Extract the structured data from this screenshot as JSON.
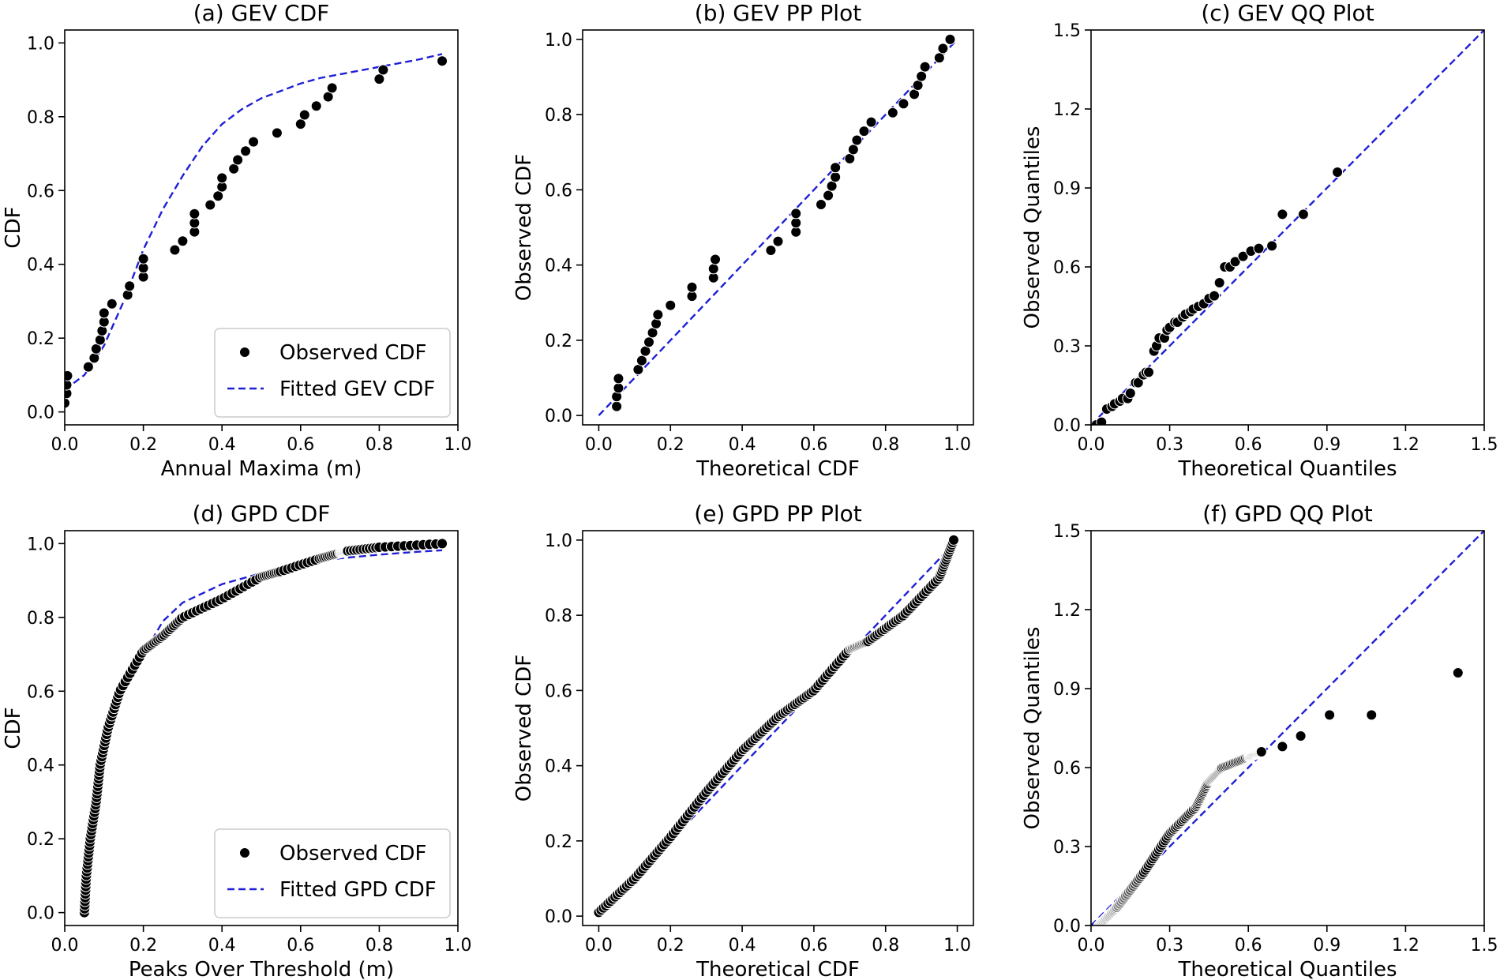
{
  "colors": {
    "points": "#000000",
    "point_edge": "#ffffff",
    "fitted_line": "#1f1fd6",
    "axes": "#000000",
    "legend_frame": "#cccccc"
  },
  "chart_data": [
    {
      "id": "a",
      "type": "scatter",
      "title": "(a) GEV CDF",
      "xlabel": "Annual Maxima (m)",
      "ylabel": "CDF",
      "xlim": [
        0.0,
        1.0
      ],
      "ylim": [
        -0.035,
        1.035
      ],
      "xticks": [
        0.0,
        0.2,
        0.4,
        0.6,
        0.8,
        1.0
      ],
      "xtick_labels": [
        "0.0",
        "0.2",
        "0.4",
        "0.6",
        "0.8",
        "1.0"
      ],
      "yticks": [
        0.0,
        0.2,
        0.4,
        0.6,
        0.8,
        1.0
      ],
      "ytick_labels": [
        "0.0",
        "0.2",
        "0.4",
        "0.6",
        "0.8",
        "1.0"
      ],
      "legend": {
        "position": "lower-right",
        "entries": [
          "Observed CDF",
          "Fitted GEV CDF"
        ]
      },
      "series": [
        {
          "name": "Observed CDF",
          "kind": "points",
          "x": [
            0.0,
            0.005,
            0.005,
            0.007,
            0.06,
            0.075,
            0.08,
            0.09,
            0.095,
            0.1,
            0.1,
            0.12,
            0.16,
            0.165,
            0.2,
            0.2,
            0.2,
            0.28,
            0.3,
            0.33,
            0.33,
            0.33,
            0.37,
            0.39,
            0.4,
            0.4,
            0.43,
            0.44,
            0.46,
            0.48,
            0.54,
            0.6,
            0.61,
            0.64,
            0.67,
            0.68,
            0.8,
            0.81,
            0.96
          ],
          "y": [
            0.024,
            0.05,
            0.073,
            0.098,
            0.122,
            0.146,
            0.171,
            0.195,
            0.22,
            0.244,
            0.268,
            0.293,
            0.317,
            0.341,
            0.366,
            0.39,
            0.415,
            0.439,
            0.463,
            0.488,
            0.512,
            0.537,
            0.561,
            0.585,
            0.61,
            0.634,
            0.659,
            0.683,
            0.707,
            0.732,
            0.756,
            0.78,
            0.805,
            0.829,
            0.854,
            0.878,
            0.902,
            0.927,
            0.951
          ]
        },
        {
          "name": "Fitted GEV CDF",
          "kind": "dashed-line",
          "x": [
            0.0,
            0.05,
            0.1,
            0.15,
            0.2,
            0.25,
            0.3,
            0.35,
            0.4,
            0.45,
            0.5,
            0.55,
            0.6,
            0.65,
            0.7,
            0.75,
            0.8,
            0.85,
            0.9,
            0.96
          ],
          "y": [
            0.06,
            0.1,
            0.18,
            0.3,
            0.44,
            0.55,
            0.64,
            0.72,
            0.78,
            0.82,
            0.85,
            0.87,
            0.89,
            0.905,
            0.915,
            0.925,
            0.935,
            0.945,
            0.955,
            0.97
          ]
        }
      ]
    },
    {
      "id": "b",
      "type": "scatter",
      "title": "(b) GEV PP Plot",
      "xlabel": "Theoretical CDF",
      "ylabel": "Observed CDF",
      "xlim": [
        -0.045,
        1.045
      ],
      "ylim": [
        -0.025,
        1.025
      ],
      "xticks": [
        0.0,
        0.2,
        0.4,
        0.6,
        0.8,
        1.0
      ],
      "xtick_labels": [
        "0.0",
        "0.2",
        "0.4",
        "0.6",
        "0.8",
        "1.0"
      ],
      "yticks": [
        0.0,
        0.2,
        0.4,
        0.6,
        0.8,
        1.0
      ],
      "ytick_labels": [
        "0.0",
        "0.2",
        "0.4",
        "0.6",
        "0.8",
        "1.0"
      ],
      "legend": null,
      "series": [
        {
          "name": "Observed",
          "kind": "points",
          "x": [
            0.05,
            0.05,
            0.055,
            0.055,
            0.11,
            0.12,
            0.13,
            0.14,
            0.15,
            0.16,
            0.165,
            0.2,
            0.26,
            0.26,
            0.32,
            0.32,
            0.325,
            0.48,
            0.5,
            0.55,
            0.55,
            0.55,
            0.62,
            0.64,
            0.65,
            0.66,
            0.66,
            0.7,
            0.71,
            0.72,
            0.74,
            0.76,
            0.82,
            0.85,
            0.88,
            0.89,
            0.9,
            0.91,
            0.95,
            0.96,
            0.98
          ],
          "y": [
            0.024,
            0.05,
            0.073,
            0.098,
            0.122,
            0.146,
            0.171,
            0.195,
            0.22,
            0.244,
            0.268,
            0.293,
            0.317,
            0.341,
            0.366,
            0.39,
            0.415,
            0.439,
            0.463,
            0.488,
            0.512,
            0.537,
            0.561,
            0.585,
            0.61,
            0.634,
            0.659,
            0.683,
            0.707,
            0.732,
            0.756,
            0.78,
            0.805,
            0.829,
            0.854,
            0.878,
            0.902,
            0.927,
            0.951,
            0.976,
            1.0
          ]
        },
        {
          "name": "Reference",
          "kind": "dashed-line",
          "x": [
            0.0,
            1.0
          ],
          "y": [
            0.0,
            1.0
          ]
        }
      ]
    },
    {
      "id": "c",
      "type": "scatter",
      "title": "(c) GEV QQ Plot",
      "xlabel": "Theoretical Quantiles",
      "ylabel": "Observed Quantiles",
      "xlim": [
        0.0,
        1.5
      ],
      "ylim": [
        0.0,
        1.5
      ],
      "xticks": [
        0.0,
        0.3,
        0.6,
        0.9,
        1.2,
        1.5
      ],
      "xtick_labels": [
        "0.0",
        "0.3",
        "0.6",
        "0.9",
        "1.2",
        "1.5"
      ],
      "yticks": [
        0.0,
        0.3,
        0.6,
        0.9,
        1.2,
        1.5
      ],
      "ytick_labels": [
        "0.0",
        "0.3",
        "0.6",
        "0.9",
        "1.2",
        "1.5"
      ],
      "legend": null,
      "series": [
        {
          "name": "Observed",
          "kind": "points",
          "x": [
            0.02,
            0.04,
            0.06,
            0.08,
            0.09,
            0.11,
            0.12,
            0.14,
            0.15,
            0.17,
            0.18,
            0.2,
            0.21,
            0.22,
            0.24,
            0.25,
            0.26,
            0.28,
            0.29,
            0.3,
            0.32,
            0.33,
            0.35,
            0.36,
            0.38,
            0.39,
            0.41,
            0.43,
            0.45,
            0.47,
            0.49,
            0.51,
            0.53,
            0.55,
            0.58,
            0.61,
            0.64,
            0.69,
            0.73,
            0.81,
            0.94
          ],
          "y": [
            0.0,
            0.01,
            0.06,
            0.07,
            0.08,
            0.09,
            0.1,
            0.1,
            0.12,
            0.16,
            0.16,
            0.19,
            0.2,
            0.2,
            0.28,
            0.3,
            0.33,
            0.33,
            0.36,
            0.37,
            0.39,
            0.39,
            0.41,
            0.42,
            0.43,
            0.44,
            0.45,
            0.46,
            0.48,
            0.49,
            0.54,
            0.6,
            0.6,
            0.62,
            0.64,
            0.66,
            0.67,
            0.68,
            0.8,
            0.8,
            0.96
          ]
        },
        {
          "name": "Reference",
          "kind": "dashed-line",
          "x": [
            0.0,
            1.5
          ],
          "y": [
            0.0,
            1.5
          ]
        }
      ]
    },
    {
      "id": "d",
      "type": "scatter",
      "title": "(d) GPD CDF",
      "xlabel": "Peaks Over Threshold (m)",
      "ylabel": "CDF",
      "xlim": [
        0.0,
        1.0
      ],
      "ylim": [
        -0.035,
        1.035
      ],
      "xticks": [
        0.0,
        0.2,
        0.4,
        0.6,
        0.8,
        1.0
      ],
      "xtick_labels": [
        "0.0",
        "0.2",
        "0.4",
        "0.6",
        "0.8",
        "1.0"
      ],
      "yticks": [
        0.0,
        0.2,
        0.4,
        0.6,
        0.8,
        1.0
      ],
      "ytick_labels": [
        "0.0",
        "0.2",
        "0.4",
        "0.6",
        "0.8",
        "1.0"
      ],
      "legend": {
        "position": "lower-right",
        "entries": [
          "Observed CDF",
          "Fitted GPD CDF"
        ]
      },
      "curve_points": [
        [
          0.05,
          0.0
        ],
        [
          0.055,
          0.1
        ],
        [
          0.065,
          0.2
        ],
        [
          0.08,
          0.3
        ],
        [
          0.09,
          0.4
        ],
        [
          0.11,
          0.5
        ],
        [
          0.14,
          0.6
        ],
        [
          0.2,
          0.71
        ],
        [
          0.25,
          0.75
        ],
        [
          0.3,
          0.8
        ],
        [
          0.4,
          0.85
        ],
        [
          0.5,
          0.91
        ],
        [
          0.55,
          0.925
        ],
        [
          0.65,
          0.96
        ],
        [
          0.7,
          0.975
        ],
        [
          0.72,
          0.98
        ],
        [
          0.8,
          0.99
        ],
        [
          0.96,
          1.0
        ]
      ],
      "series": [
        {
          "name": "Observed CDF",
          "kind": "dense-points",
          "count": 170
        },
        {
          "name": "Fitted GPD CDF",
          "kind": "dashed-line",
          "x": [
            0.05,
            0.07,
            0.1,
            0.15,
            0.2,
            0.25,
            0.3,
            0.4,
            0.5,
            0.6,
            0.7,
            0.8,
            0.9,
            0.96
          ],
          "y": [
            0.0,
            0.27,
            0.5,
            0.64,
            0.7,
            0.79,
            0.84,
            0.89,
            0.92,
            0.945,
            0.96,
            0.97,
            0.978,
            0.982
          ]
        }
      ]
    },
    {
      "id": "e",
      "type": "scatter",
      "title": "(e) GPD PP Plot",
      "xlabel": "Theoretical CDF",
      "ylabel": "Observed CDF",
      "xlim": [
        -0.045,
        1.045
      ],
      "ylim": [
        -0.025,
        1.025
      ],
      "xticks": [
        0.0,
        0.2,
        0.4,
        0.6,
        0.8,
        1.0
      ],
      "xtick_labels": [
        "0.0",
        "0.2",
        "0.4",
        "0.6",
        "0.8",
        "1.0"
      ],
      "yticks": [
        0.0,
        0.2,
        0.4,
        0.6,
        0.8,
        1.0
      ],
      "ytick_labels": [
        "0.0",
        "0.2",
        "0.4",
        "0.6",
        "0.8",
        "1.0"
      ],
      "legend": null,
      "curve_points": [
        [
          0.0,
          0.01
        ],
        [
          0.1,
          0.1
        ],
        [
          0.2,
          0.21
        ],
        [
          0.3,
          0.33
        ],
        [
          0.4,
          0.44
        ],
        [
          0.5,
          0.53
        ],
        [
          0.6,
          0.6
        ],
        [
          0.7,
          0.71
        ],
        [
          0.75,
          0.73
        ],
        [
          0.85,
          0.8
        ],
        [
          0.95,
          0.9
        ],
        [
          0.99,
          1.0
        ]
      ],
      "series": [
        {
          "name": "Observed",
          "kind": "dense-points",
          "count": 170
        },
        {
          "name": "Reference",
          "kind": "dashed-line",
          "x": [
            0.0,
            1.0
          ],
          "y": [
            0.0,
            1.0
          ]
        }
      ]
    },
    {
      "id": "f",
      "type": "scatter",
      "title": "(f) GPD QQ Plot",
      "xlabel": "Theoretical Quantiles",
      "ylabel": "Observed Quantiles",
      "xlim": [
        0.0,
        1.5
      ],
      "ylim": [
        0.0,
        1.5
      ],
      "xticks": [
        0.0,
        0.3,
        0.6,
        0.9,
        1.2,
        1.5
      ],
      "xtick_labels": [
        "0.0",
        "0.3",
        "0.6",
        "0.9",
        "1.2",
        "1.5"
      ],
      "yticks": [
        0.0,
        0.3,
        0.6,
        0.9,
        1.2,
        1.5
      ],
      "ytick_labels": [
        "0.0",
        "0.3",
        "0.6",
        "0.9",
        "1.2",
        "1.5"
      ],
      "legend": null,
      "curve_points": [
        [
          0.03,
          0.0
        ],
        [
          0.1,
          0.07
        ],
        [
          0.2,
          0.2
        ],
        [
          0.3,
          0.35
        ],
        [
          0.4,
          0.45
        ],
        [
          0.45,
          0.55
        ],
        [
          0.5,
          0.6
        ],
        [
          0.6,
          0.64
        ],
        [
          0.65,
          0.66
        ]
      ],
      "series": [
        {
          "name": "Observed",
          "kind": "dense-points",
          "count": 140,
          "extra_x": [
            0.73,
            0.8,
            0.91,
            1.07,
            1.4
          ],
          "extra_y": [
            0.68,
            0.72,
            0.8,
            0.8,
            0.96
          ]
        },
        {
          "name": "Reference",
          "kind": "dashed-line",
          "x": [
            0.0,
            1.5
          ],
          "y": [
            0.0,
            1.5
          ]
        }
      ]
    }
  ]
}
